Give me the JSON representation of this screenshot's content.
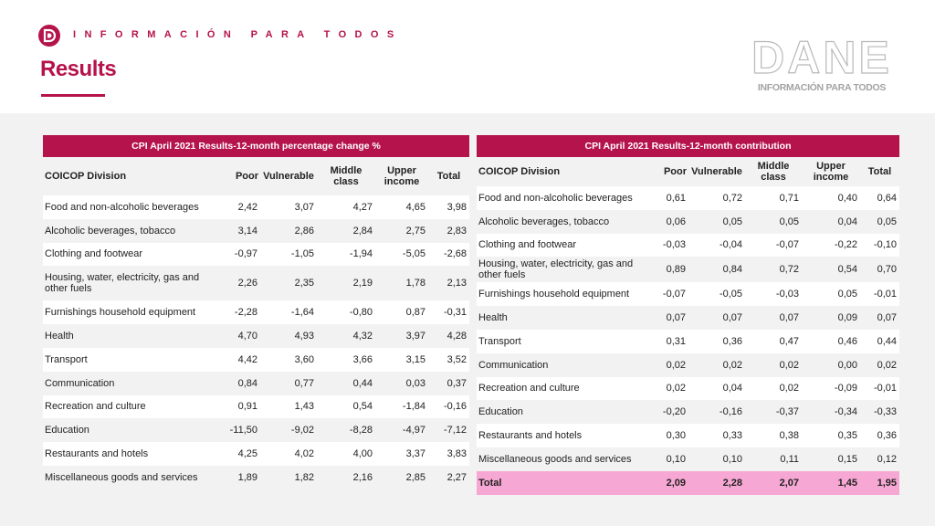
{
  "header": {
    "tagline": "INFORMACIÓN PARA TODOS",
    "title": "Results",
    "brand_logo_word": "DANE",
    "brand_logo_tagline": "INFORMACIÓN PARA TODOS"
  },
  "colors": {
    "accent": "#b5134b",
    "total_row": "#f7a7d3",
    "stripe": "#f2f2f2"
  },
  "table_percentage": {
    "caption": "CPI April 2021 Results-12-month percentage change %",
    "columns": [
      "COICOP Division",
      "Poor",
      "Vulnerable",
      "Middle class",
      "Upper income",
      "Total"
    ],
    "rows": [
      {
        "division": "Food and non-alcoholic beverages",
        "poor": "2,42",
        "vulnerable": "3,07",
        "middle": "4,27",
        "upper": "4,65",
        "total": "3,98"
      },
      {
        "division": "Alcoholic beverages, tobacco",
        "poor": "3,14",
        "vulnerable": "2,86",
        "middle": "2,84",
        "upper": "2,75",
        "total": "2,83"
      },
      {
        "division": "Clothing and footwear",
        "poor": "-0,97",
        "vulnerable": "-1,05",
        "middle": "-1,94",
        "upper": "-5,05",
        "total": "-2,68"
      },
      {
        "division": "Housing, water, electricity, gas and other fuels",
        "poor": "2,26",
        "vulnerable": "2,35",
        "middle": "2,19",
        "upper": "1,78",
        "total": "2,13"
      },
      {
        "division": "Furnishings household equipment",
        "poor": "-2,28",
        "vulnerable": "-1,64",
        "middle": "-0,80",
        "upper": "0,87",
        "total": "-0,31"
      },
      {
        "division": "Health",
        "poor": "4,70",
        "vulnerable": "4,93",
        "middle": "4,32",
        "upper": "3,97",
        "total": "4,28"
      },
      {
        "division": "Transport",
        "poor": "4,42",
        "vulnerable": "3,60",
        "middle": "3,66",
        "upper": "3,15",
        "total": "3,52"
      },
      {
        "division": "Communication",
        "poor": "0,84",
        "vulnerable": "0,77",
        "middle": "0,44",
        "upper": "0,03",
        "total": "0,37"
      },
      {
        "division": "Recreation and culture",
        "poor": "0,91",
        "vulnerable": "1,43",
        "middle": "0,54",
        "upper": "-1,84",
        "total": "-0,16"
      },
      {
        "division": "Education",
        "poor": "-11,50",
        "vulnerable": "-9,02",
        "middle": "-8,28",
        "upper": "-4,97",
        "total": "-7,12"
      },
      {
        "division": "Restaurants and hotels",
        "poor": "4,25",
        "vulnerable": "4,02",
        "middle": "4,00",
        "upper": "3,37",
        "total": "3,83"
      },
      {
        "division": "Miscellaneous goods and services",
        "poor": "1,89",
        "vulnerable": "1,82",
        "middle": "2,16",
        "upper": "2,85",
        "total": "2,27"
      }
    ]
  },
  "table_contribution": {
    "caption": "CPI April 2021 Results-12-month contribution",
    "columns": [
      "COICOP Division",
      "Poor",
      "Vulnerable",
      "Middle class",
      "Upper income",
      "Total"
    ],
    "rows": [
      {
        "division": "Food and non-alcoholic beverages",
        "poor": "0,61",
        "vulnerable": "0,72",
        "middle": "0,71",
        "upper": "0,40",
        "total": "0,64"
      },
      {
        "division": "Alcoholic beverages, tobacco",
        "poor": "0,06",
        "vulnerable": "0,05",
        "middle": "0,05",
        "upper": "0,04",
        "total": "0,05"
      },
      {
        "division": "Clothing and footwear",
        "poor": "-0,03",
        "vulnerable": "-0,04",
        "middle": "-0,07",
        "upper": "-0,22",
        "total": "-0,10"
      },
      {
        "division": "Housing, water, electricity, gas and other fuels",
        "poor": "0,89",
        "vulnerable": "0,84",
        "middle": "0,72",
        "upper": "0,54",
        "total": "0,70"
      },
      {
        "division": "Furnishings household equipment",
        "poor": "-0,07",
        "vulnerable": "-0,05",
        "middle": "-0,03",
        "upper": "0,05",
        "total": "-0,01"
      },
      {
        "division": "Health",
        "poor": "0,07",
        "vulnerable": "0,07",
        "middle": "0,07",
        "upper": "0,09",
        "total": "0,07"
      },
      {
        "division": "Transport",
        "poor": "0,31",
        "vulnerable": "0,36",
        "middle": "0,47",
        "upper": "0,46",
        "total": "0,44"
      },
      {
        "division": "Communication",
        "poor": "0,02",
        "vulnerable": "0,02",
        "middle": "0,02",
        "upper": "0,00",
        "total": "0,02"
      },
      {
        "division": "Recreation and culture",
        "poor": "0,02",
        "vulnerable": "0,04",
        "middle": "0,02",
        "upper": "-0,09",
        "total": "-0,01"
      },
      {
        "division": "Education",
        "poor": "-0,20",
        "vulnerable": "-0,16",
        "middle": "-0,37",
        "upper": "-0,34",
        "total": "-0,33"
      },
      {
        "division": "Restaurants and hotels",
        "poor": "0,30",
        "vulnerable": "0,33",
        "middle": "0,38",
        "upper": "0,35",
        "total": "0,36"
      },
      {
        "division": "Miscellaneous goods and services",
        "poor": "0,10",
        "vulnerable": "0,10",
        "middle": "0,11",
        "upper": "0,15",
        "total": "0,12"
      }
    ],
    "total_row": {
      "division": "Total",
      "poor": "2,09",
      "vulnerable": "2,28",
      "middle": "2,07",
      "upper": "1,45",
      "total": "1,95"
    }
  }
}
